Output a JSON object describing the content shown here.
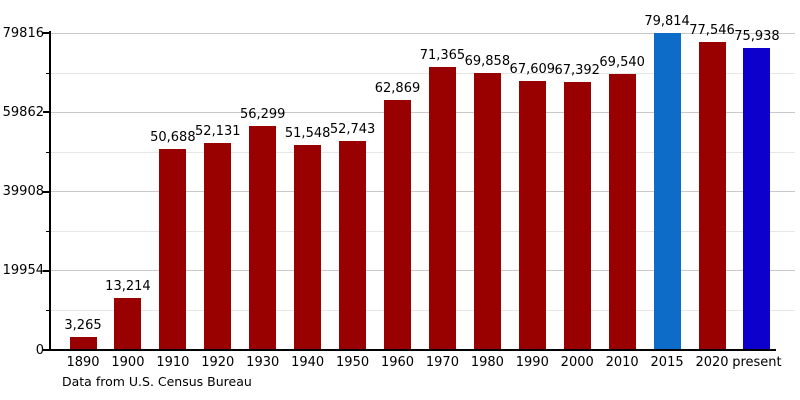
{
  "caption": "Data from U.S. Census Bureau",
  "colors": {
    "bar_default": "#990000",
    "bar_2015": "#0c6cc8",
    "bar_present": "#0d00cd",
    "axis": "#000000",
    "grid_major": "#c9c9c9",
    "grid_minor": "#e7e7e7"
  },
  "chart_data": {
    "type": "bar",
    "title": "",
    "xlabel": "",
    "ylabel": "",
    "categories": [
      "1890",
      "1900",
      "1910",
      "1920",
      "1930",
      "1940",
      "1950",
      "1960",
      "1970",
      "1980",
      "1990",
      "2000",
      "2010",
      "2015",
      "2020",
      "present"
    ],
    "values": [
      3265,
      13214,
      50688,
      52131,
      56299,
      51548,
      52743,
      62869,
      71365,
      69858,
      67609,
      67392,
      69540,
      79814,
      77546,
      75938
    ],
    "value_labels": [
      "3,265",
      "13,214",
      "50,688",
      "52,131",
      "56,299",
      "51,548",
      "52,743",
      "62,869",
      "71,365",
      "69,858",
      "67,609",
      "67,392",
      "69,540",
      "79,814",
      "77,546",
      "75,938"
    ],
    "bar_colors": [
      "#990000",
      "#990000",
      "#990000",
      "#990000",
      "#990000",
      "#990000",
      "#990000",
      "#990000",
      "#990000",
      "#990000",
      "#990000",
      "#990000",
      "#990000",
      "#0c6cc8",
      "#990000",
      "#0d00cd"
    ],
    "ylim": [
      0,
      79816
    ],
    "yticks": [
      0,
      19954,
      39908,
      59862,
      79816
    ],
    "ytick_labels": [
      "0",
      "19954",
      "39908",
      "59862",
      "79816"
    ],
    "minor_yticks": [
      9977,
      29931,
      49885,
      69839
    ],
    "grid": "horizontal-major-and-minor",
    "legend": null,
    "annotation": "Data from U.S. Census Bureau"
  }
}
